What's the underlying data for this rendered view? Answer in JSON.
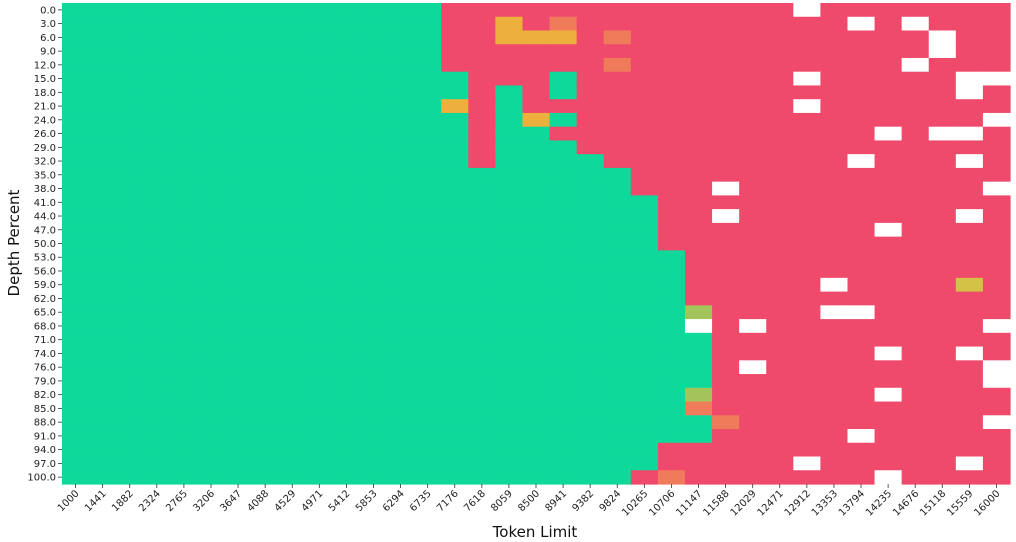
{
  "chart_data": {
    "type": "heatmap",
    "title": "",
    "xlabel": "Token Limit",
    "ylabel": "Depth Percent",
    "x": [
      "1000",
      "1441",
      "1882",
      "2324",
      "2765",
      "3206",
      "3647",
      "4088",
      "4529",
      "4971",
      "5412",
      "5853",
      "6294",
      "6735",
      "7176",
      "7618",
      "8059",
      "8500",
      "8941",
      "9382",
      "9824",
      "10265",
      "10706",
      "11147",
      "11588",
      "12029",
      "12471",
      "12912",
      "13353",
      "13794",
      "14235",
      "14676",
      "15118",
      "15559",
      "16000"
    ],
    "y": [
      "0.0",
      "3.0",
      "6.0",
      "9.0",
      "12.0",
      "15.0",
      "18.0",
      "21.0",
      "24.0",
      "26.0",
      "29.0",
      "32.0",
      "35.0",
      "38.0",
      "41.0",
      "44.0",
      "47.0",
      "50.0",
      "53.0",
      "56.0",
      "59.0",
      "62.0",
      "65.0",
      "68.0",
      "71.0",
      "74.0",
      "76.0",
      "79.0",
      "82.0",
      "85.0",
      "88.0",
      "91.0",
      "94.0",
      "97.0",
      "100.0"
    ],
    "color_scale": {
      "1": "#ef4a6c",
      "3": "#f07b5b",
      "5": "#eeb03d",
      "6": "#d4c247",
      "7": "#a2c45a",
      "10": "#0fd89b"
    },
    "missing_color": "#ffffff",
    "values": [
      [
        10,
        10,
        10,
        10,
        10,
        10,
        10,
        10,
        10,
        10,
        10,
        10,
        10,
        10,
        1,
        1,
        1,
        1,
        1,
        1,
        1,
        1,
        1,
        1,
        1,
        1,
        1,
        null,
        1,
        1,
        1,
        1,
        1,
        1,
        1
      ],
      [
        10,
        10,
        10,
        10,
        10,
        10,
        10,
        10,
        10,
        10,
        10,
        10,
        10,
        10,
        1,
        1,
        5,
        1,
        3,
        1,
        1,
        1,
        1,
        1,
        1,
        1,
        1,
        1,
        1,
        null,
        1,
        null,
        1,
        1,
        1
      ],
      [
        10,
        10,
        10,
        10,
        10,
        10,
        10,
        10,
        10,
        10,
        10,
        10,
        10,
        10,
        1,
        1,
        5,
        5,
        5,
        1,
        3,
        1,
        1,
        1,
        1,
        1,
        1,
        1,
        1,
        1,
        1,
        1,
        null,
        1,
        1
      ],
      [
        10,
        10,
        10,
        10,
        10,
        10,
        10,
        10,
        10,
        10,
        10,
        10,
        10,
        10,
        1,
        1,
        1,
        1,
        1,
        1,
        1,
        1,
        1,
        1,
        1,
        1,
        1,
        1,
        1,
        1,
        1,
        1,
        null,
        1,
        1
      ],
      [
        10,
        10,
        10,
        10,
        10,
        10,
        10,
        10,
        10,
        10,
        10,
        10,
        10,
        10,
        1,
        1,
        1,
        1,
        1,
        1,
        3,
        1,
        1,
        1,
        1,
        1,
        1,
        1,
        1,
        1,
        1,
        null,
        1,
        1,
        1
      ],
      [
        10,
        10,
        10,
        10,
        10,
        10,
        10,
        10,
        10,
        10,
        10,
        10,
        10,
        10,
        10,
        1,
        1,
        1,
        10,
        1,
        1,
        1,
        1,
        1,
        1,
        1,
        1,
        null,
        1,
        1,
        1,
        1,
        1,
        null,
        null
      ],
      [
        10,
        10,
        10,
        10,
        10,
        10,
        10,
        10,
        10,
        10,
        10,
        10,
        10,
        10,
        10,
        1,
        10,
        1,
        10,
        1,
        1,
        1,
        1,
        1,
        1,
        1,
        1,
        1,
        1,
        1,
        1,
        1,
        1,
        null,
        1
      ],
      [
        10,
        10,
        10,
        10,
        10,
        10,
        10,
        10,
        10,
        10,
        10,
        10,
        10,
        10,
        5,
        1,
        10,
        1,
        1,
        1,
        1,
        1,
        1,
        1,
        1,
        1,
        1,
        null,
        1,
        1,
        1,
        1,
        1,
        1,
        1
      ],
      [
        10,
        10,
        10,
        10,
        10,
        10,
        10,
        10,
        10,
        10,
        10,
        10,
        10,
        10,
        10,
        1,
        10,
        5,
        10,
        1,
        1,
        1,
        1,
        1,
        1,
        1,
        1,
        1,
        1,
        1,
        1,
        1,
        1,
        1,
        null
      ],
      [
        10,
        10,
        10,
        10,
        10,
        10,
        10,
        10,
        10,
        10,
        10,
        10,
        10,
        10,
        10,
        1,
        10,
        10,
        1,
        1,
        1,
        1,
        1,
        1,
        1,
        1,
        1,
        1,
        1,
        1,
        null,
        1,
        null,
        null,
        1
      ],
      [
        10,
        10,
        10,
        10,
        10,
        10,
        10,
        10,
        10,
        10,
        10,
        10,
        10,
        10,
        10,
        1,
        10,
        10,
        10,
        1,
        1,
        1,
        1,
        1,
        1,
        1,
        1,
        1,
        1,
        1,
        1,
        1,
        1,
        1,
        1
      ],
      [
        10,
        10,
        10,
        10,
        10,
        10,
        10,
        10,
        10,
        10,
        10,
        10,
        10,
        10,
        10,
        1,
        10,
        10,
        10,
        10,
        1,
        1,
        1,
        1,
        1,
        1,
        1,
        1,
        1,
        null,
        1,
        1,
        1,
        null,
        1
      ],
      [
        10,
        10,
        10,
        10,
        10,
        10,
        10,
        10,
        10,
        10,
        10,
        10,
        10,
        10,
        10,
        10,
        10,
        10,
        10,
        10,
        10,
        1,
        1,
        1,
        1,
        1,
        1,
        1,
        1,
        1,
        1,
        1,
        1,
        1,
        1
      ],
      [
        10,
        10,
        10,
        10,
        10,
        10,
        10,
        10,
        10,
        10,
        10,
        10,
        10,
        10,
        10,
        10,
        10,
        10,
        10,
        10,
        10,
        1,
        1,
        1,
        null,
        1,
        1,
        1,
        1,
        1,
        1,
        1,
        1,
        1,
        null
      ],
      [
        10,
        10,
        10,
        10,
        10,
        10,
        10,
        10,
        10,
        10,
        10,
        10,
        10,
        10,
        10,
        10,
        10,
        10,
        10,
        10,
        10,
        10,
        1,
        1,
        1,
        1,
        1,
        1,
        1,
        1,
        1,
        1,
        1,
        1,
        1
      ],
      [
        10,
        10,
        10,
        10,
        10,
        10,
        10,
        10,
        10,
        10,
        10,
        10,
        10,
        10,
        10,
        10,
        10,
        10,
        10,
        10,
        10,
        10,
        1,
        1,
        null,
        1,
        1,
        1,
        1,
        1,
        1,
        1,
        1,
        null,
        1
      ],
      [
        10,
        10,
        10,
        10,
        10,
        10,
        10,
        10,
        10,
        10,
        10,
        10,
        10,
        10,
        10,
        10,
        10,
        10,
        10,
        10,
        10,
        10,
        1,
        1,
        1,
        1,
        1,
        1,
        1,
        1,
        null,
        1,
        1,
        1,
        1
      ],
      [
        10,
        10,
        10,
        10,
        10,
        10,
        10,
        10,
        10,
        10,
        10,
        10,
        10,
        10,
        10,
        10,
        10,
        10,
        10,
        10,
        10,
        10,
        1,
        1,
        1,
        1,
        1,
        1,
        1,
        1,
        1,
        1,
        1,
        1,
        1
      ],
      [
        10,
        10,
        10,
        10,
        10,
        10,
        10,
        10,
        10,
        10,
        10,
        10,
        10,
        10,
        10,
        10,
        10,
        10,
        10,
        10,
        10,
        10,
        10,
        1,
        1,
        1,
        1,
        1,
        1,
        1,
        1,
        1,
        1,
        1,
        1
      ],
      [
        10,
        10,
        10,
        10,
        10,
        10,
        10,
        10,
        10,
        10,
        10,
        10,
        10,
        10,
        10,
        10,
        10,
        10,
        10,
        10,
        10,
        10,
        10,
        1,
        1,
        1,
        1,
        1,
        1,
        1,
        1,
        1,
        1,
        1,
        1
      ],
      [
        10,
        10,
        10,
        10,
        10,
        10,
        10,
        10,
        10,
        10,
        10,
        10,
        10,
        10,
        10,
        10,
        10,
        10,
        10,
        10,
        10,
        10,
        10,
        1,
        1,
        1,
        1,
        1,
        null,
        1,
        1,
        1,
        1,
        6,
        1
      ],
      [
        10,
        10,
        10,
        10,
        10,
        10,
        10,
        10,
        10,
        10,
        10,
        10,
        10,
        10,
        10,
        10,
        10,
        10,
        10,
        10,
        10,
        10,
        10,
        1,
        1,
        1,
        1,
        1,
        1,
        1,
        1,
        1,
        1,
        1,
        1
      ],
      [
        10,
        10,
        10,
        10,
        10,
        10,
        10,
        10,
        10,
        10,
        10,
        10,
        10,
        10,
        10,
        10,
        10,
        10,
        10,
        10,
        10,
        10,
        10,
        7,
        1,
        1,
        1,
        1,
        null,
        null,
        1,
        1,
        1,
        1,
        1
      ],
      [
        10,
        10,
        10,
        10,
        10,
        10,
        10,
        10,
        10,
        10,
        10,
        10,
        10,
        10,
        10,
        10,
        10,
        10,
        10,
        10,
        10,
        10,
        10,
        null,
        1,
        null,
        1,
        1,
        1,
        1,
        1,
        1,
        1,
        1,
        null
      ],
      [
        10,
        10,
        10,
        10,
        10,
        10,
        10,
        10,
        10,
        10,
        10,
        10,
        10,
        10,
        10,
        10,
        10,
        10,
        10,
        10,
        10,
        10,
        10,
        10,
        1,
        1,
        1,
        1,
        1,
        1,
        1,
        1,
        1,
        1,
        1
      ],
      [
        10,
        10,
        10,
        10,
        10,
        10,
        10,
        10,
        10,
        10,
        10,
        10,
        10,
        10,
        10,
        10,
        10,
        10,
        10,
        10,
        10,
        10,
        10,
        10,
        1,
        1,
        1,
        1,
        1,
        1,
        null,
        1,
        1,
        null,
        1
      ],
      [
        10,
        10,
        10,
        10,
        10,
        10,
        10,
        10,
        10,
        10,
        10,
        10,
        10,
        10,
        10,
        10,
        10,
        10,
        10,
        10,
        10,
        10,
        10,
        10,
        1,
        null,
        1,
        1,
        1,
        1,
        1,
        1,
        1,
        1,
        null
      ],
      [
        10,
        10,
        10,
        10,
        10,
        10,
        10,
        10,
        10,
        10,
        10,
        10,
        10,
        10,
        10,
        10,
        10,
        10,
        10,
        10,
        10,
        10,
        10,
        10,
        1,
        1,
        1,
        1,
        1,
        1,
        1,
        1,
        1,
        1,
        null
      ],
      [
        10,
        10,
        10,
        10,
        10,
        10,
        10,
        10,
        10,
        10,
        10,
        10,
        10,
        10,
        10,
        10,
        10,
        10,
        10,
        10,
        10,
        10,
        10,
        7,
        1,
        1,
        1,
        1,
        1,
        1,
        null,
        1,
        1,
        1,
        1
      ],
      [
        10,
        10,
        10,
        10,
        10,
        10,
        10,
        10,
        10,
        10,
        10,
        10,
        10,
        10,
        10,
        10,
        10,
        10,
        10,
        10,
        10,
        10,
        10,
        3,
        1,
        1,
        1,
        1,
        1,
        1,
        1,
        1,
        1,
        1,
        1
      ],
      [
        10,
        10,
        10,
        10,
        10,
        10,
        10,
        10,
        10,
        10,
        10,
        10,
        10,
        10,
        10,
        10,
        10,
        10,
        10,
        10,
        10,
        10,
        10,
        10,
        3,
        1,
        1,
        1,
        1,
        1,
        1,
        1,
        1,
        1,
        null
      ],
      [
        10,
        10,
        10,
        10,
        10,
        10,
        10,
        10,
        10,
        10,
        10,
        10,
        10,
        10,
        10,
        10,
        10,
        10,
        10,
        10,
        10,
        10,
        10,
        10,
        1,
        1,
        1,
        1,
        1,
        null,
        1,
        1,
        1,
        1,
        1
      ],
      [
        10,
        10,
        10,
        10,
        10,
        10,
        10,
        10,
        10,
        10,
        10,
        10,
        10,
        10,
        10,
        10,
        10,
        10,
        10,
        10,
        10,
        10,
        1,
        1,
        1,
        1,
        1,
        1,
        1,
        1,
        1,
        1,
        1,
        1,
        1
      ],
      [
        10,
        10,
        10,
        10,
        10,
        10,
        10,
        10,
        10,
        10,
        10,
        10,
        10,
        10,
        10,
        10,
        10,
        10,
        10,
        10,
        10,
        10,
        1,
        1,
        1,
        1,
        1,
        null,
        1,
        1,
        1,
        1,
        1,
        null,
        1
      ],
      [
        10,
        10,
        10,
        10,
        10,
        10,
        10,
        10,
        10,
        10,
        10,
        10,
        10,
        10,
        10,
        10,
        10,
        10,
        10,
        10,
        10,
        1,
        3,
        1,
        1,
        1,
        1,
        1,
        1,
        1,
        null,
        1,
        1,
        1,
        1
      ]
    ],
    "grid": false,
    "legend": "none"
  }
}
